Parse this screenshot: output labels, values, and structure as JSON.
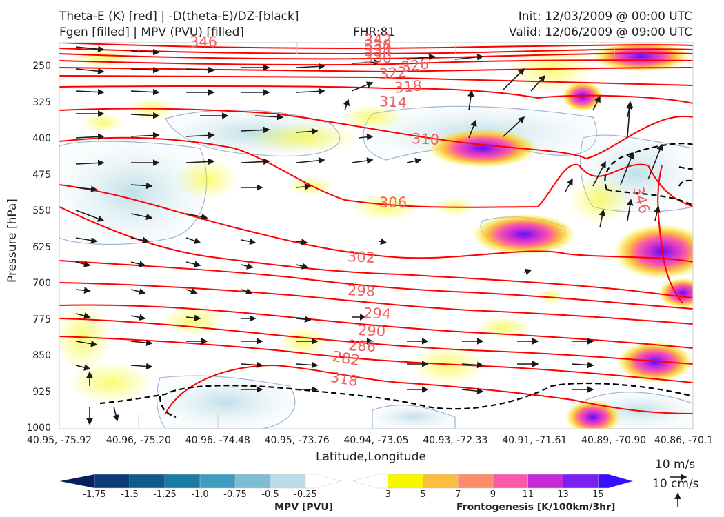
{
  "header": {
    "title_line1": "Theta-E (K) [red] | -D(theta-E)/DZ-[black]",
    "title_line2": "Fgen [filled] | MPV (PVU) [filled]",
    "fhr": "FHR:81",
    "init": "Init: 12/03/2009 @ 00:00 UTC",
    "valid": "Valid: 12/06/2009 @ 09:00 UTC"
  },
  "chart_data": {
    "type": "cross-section",
    "xlabel": "Latitude,Longitude",
    "ylabel": "Pressure [hPa]",
    "x_ticks": [
      "40.95, -75.92",
      "40.96, -75.20",
      "40.96, -74.48",
      "40.95, -73.76",
      "40.94, -73.05",
      "40.93, -72.33",
      "40.91, -71.61",
      "40.89, -70.90",
      "40.86, -70.1"
    ],
    "y_ticks": [
      250,
      325,
      400,
      475,
      550,
      625,
      700,
      775,
      850,
      925,
      1000
    ],
    "ylim": [
      1000,
      200
    ],
    "theta_e_labels": [
      "346",
      "342",
      "338",
      "334",
      "330",
      "326",
      "322",
      "318",
      "314",
      "310",
      "306",
      "302",
      "298",
      "294",
      "290",
      "286",
      "282",
      "318",
      "346"
    ],
    "theta_e_color": "#ff0000",
    "dthetae_dz_color": "#000000",
    "wind_reference": {
      "horizontal": "10 m/s",
      "vertical": "10 cm/s"
    }
  },
  "mpv_colorbar": {
    "title": "MPV [PVU]",
    "tick_labels": [
      "-1.75",
      "-1.5",
      "-1.25",
      "-1.0",
      "-0.75",
      "-0.5",
      "-0.25"
    ],
    "colors": [
      "#08205a",
      "#0d3a78",
      "#0f5a8c",
      "#1a7ba3",
      "#3e9cbf",
      "#7dbdd5",
      "#b9dce6",
      "#ffffff"
    ]
  },
  "fgen_colorbar": {
    "title": "Frontogenesis [K/100km/3hr]",
    "tick_labels": [
      "3",
      "5",
      "7",
      "9",
      "11",
      "13",
      "15"
    ],
    "colors": [
      "#ffffff",
      "#f7f700",
      "#fdbd40",
      "#fc8c6a",
      "#fc5aa8",
      "#c62ad6",
      "#7a20f0",
      "#3a0dff"
    ]
  }
}
